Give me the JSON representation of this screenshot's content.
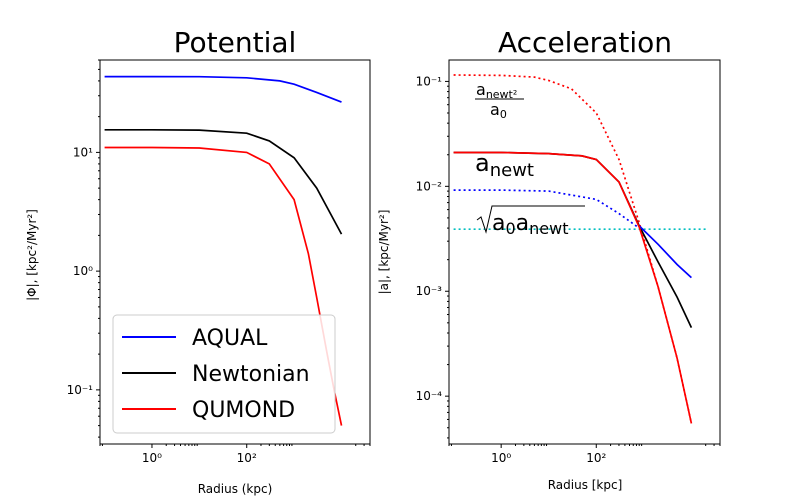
{
  "chart_data": [
    {
      "type": "line",
      "title": "Potential",
      "xlabel": "Radius (kpc)",
      "ylabel": "|Φ|,  [kpc²/Myr²]",
      "xscale": "log",
      "yscale": "log",
      "xlim": [
        0.08,
        40000
      ],
      "ylim": [
        0.035,
        60
      ],
      "xticks": [
        {
          "value": 1,
          "label": "10⁰"
        },
        {
          "value": 100,
          "label": "10²"
        }
      ],
      "yticks": [
        {
          "value": 0.1,
          "label": "10⁻¹"
        },
        {
          "value": 1,
          "label": "10⁰"
        },
        {
          "value": 10,
          "label": "10¹"
        }
      ],
      "legend": {
        "placement": "lower-left",
        "entries": [
          "AQUAL",
          "Newtonian",
          "QUMOND"
        ]
      },
      "series": [
        {
          "name": "AQUAL",
          "color": "#0000ff",
          "style": "solid",
          "points": [
            [
              0.1,
              43.5
            ],
            [
              1,
              43.5
            ],
            [
              10,
              43.4
            ],
            [
              100,
              42.5
            ],
            [
              500,
              40
            ],
            [
              1000,
              37.5
            ],
            [
              3000,
              32
            ],
            [
              10000,
              26.5
            ]
          ]
        },
        {
          "name": "Newtonian",
          "color": "#000000",
          "style": "solid",
          "points": [
            [
              0.1,
              15.5
            ],
            [
              1,
              15.5
            ],
            [
              10,
              15.4
            ],
            [
              100,
              14.5
            ],
            [
              300,
              12.5
            ],
            [
              1000,
              9
            ],
            [
              3000,
              5
            ],
            [
              10000,
              2.05
            ]
          ]
        },
        {
          "name": "QUMOND",
          "color": "#ff0000",
          "style": "solid",
          "points": [
            [
              0.1,
              11
            ],
            [
              1,
              11
            ],
            [
              10,
              10.9
            ],
            [
              100,
              10
            ],
            [
              300,
              8
            ],
            [
              1000,
              4
            ],
            [
              2000,
              1.4
            ],
            [
              3000,
              0.6
            ],
            [
              5000,
              0.2
            ],
            [
              7000,
              0.1
            ],
            [
              10000,
              0.05
            ]
          ]
        }
      ]
    },
    {
      "type": "line",
      "title": "Acceleration",
      "xlabel": "Radius [kpc]",
      "ylabel": "|a|,  [kpc/Myr²]",
      "xscale": "log",
      "yscale": "log",
      "xlim": [
        0.08,
        40000
      ],
      "ylim": [
        3.5e-05,
        0.16
      ],
      "xticks": [
        {
          "value": 1,
          "label": "10⁰"
        },
        {
          "value": 100,
          "label": "10²"
        }
      ],
      "yticks": [
        {
          "value": 0.0001,
          "label": "10⁻⁴"
        },
        {
          "value": 0.001,
          "label": "10⁻³"
        },
        {
          "value": 0.01,
          "label": "10⁻²"
        },
        {
          "value": 0.1,
          "label": "10⁻¹"
        }
      ],
      "annotations": [
        {
          "id": "newt2",
          "text_num": "a",
          "num_sub": "newt²",
          "den": "a",
          "den_sub": "0"
        },
        {
          "id": "newt",
          "text": "a",
          "sub": "newt"
        },
        {
          "id": "sqrt",
          "text": "a",
          "sub1": "0",
          "text2": "a",
          "sub2": "newt"
        }
      ],
      "series": [
        {
          "name": "",
          "color": "#ff0000",
          "style": "dotted",
          "points": [
            [
              0.1,
              0.115
            ],
            [
              1,
              0.114
            ],
            [
              5,
              0.11
            ],
            [
              10,
              0.102
            ],
            [
              30,
              0.085
            ],
            [
              100,
              0.05
            ],
            [
              300,
              0.018
            ],
            [
              800,
              0.0045
            ],
            [
              2000,
              0.0011
            ],
            [
              5000,
              0.00023
            ],
            [
              10000,
              5.5e-05
            ]
          ]
        },
        {
          "name": "",
          "color": "#0000ff",
          "style": "dotted",
          "points": [
            [
              0.1,
              0.0092
            ],
            [
              1,
              0.0092
            ],
            [
              10,
              0.009
            ],
            [
              100,
              0.0075
            ],
            [
              300,
              0.0055
            ],
            [
              800,
              0.004
            ]
          ]
        },
        {
          "name": "",
          "color": "#00bfbf",
          "style": "dotted",
          "points": [
            [
              0.1,
              0.0039
            ],
            [
              20000,
              0.0039
            ]
          ]
        },
        {
          "name": "",
          "color": "#000000",
          "style": "solid",
          "points": [
            [
              0.1,
              0.021
            ],
            [
              1,
              0.021
            ],
            [
              10,
              0.0205
            ],
            [
              50,
              0.0195
            ],
            [
              100,
              0.018
            ],
            [
              300,
              0.011
            ],
            [
              800,
              0.0042
            ],
            [
              2000,
              0.0019
            ],
            [
              5000,
              0.00088
            ],
            [
              10000,
              0.00045
            ]
          ]
        },
        {
          "name": "",
          "color": "#0000ff",
          "style": "solid",
          "points": [
            [
              800,
              0.0042
            ],
            [
              2000,
              0.0028
            ],
            [
              5000,
              0.0018
            ],
            [
              10000,
              0.00135
            ]
          ]
        },
        {
          "name": "",
          "color": "#ff0000",
          "style": "solid",
          "points": [
            [
              0.1,
              0.021
            ],
            [
              1,
              0.021
            ],
            [
              10,
              0.0205
            ],
            [
              50,
              0.0195
            ],
            [
              100,
              0.018
            ],
            [
              300,
              0.011
            ],
            [
              800,
              0.0041
            ],
            [
              2000,
              0.0011
            ],
            [
              5000,
              0.00023
            ],
            [
              10000,
              5.5e-05
            ]
          ]
        }
      ]
    }
  ]
}
